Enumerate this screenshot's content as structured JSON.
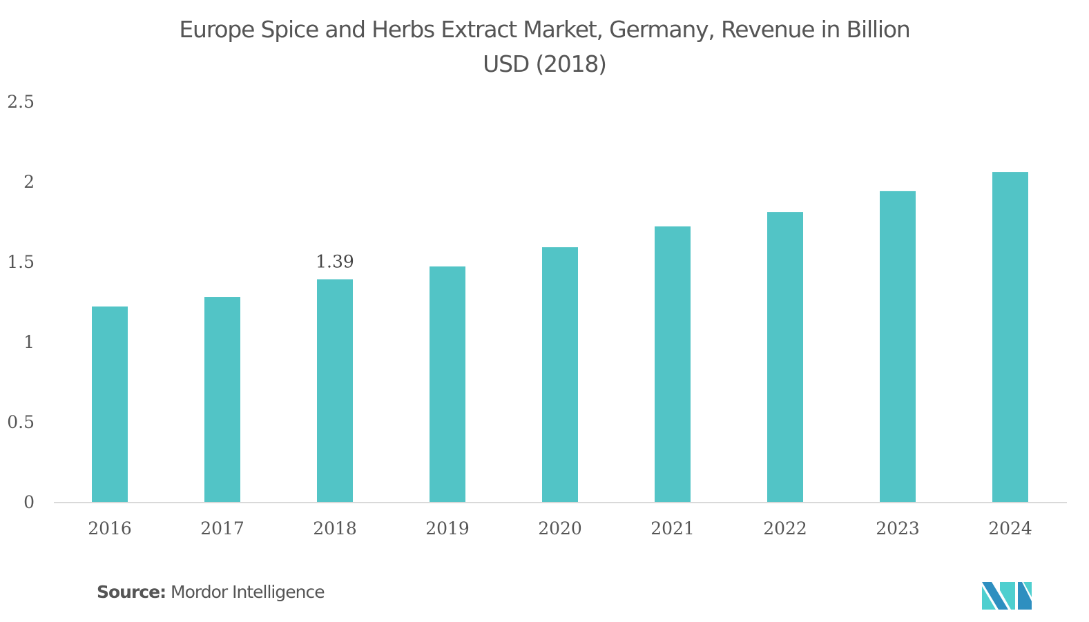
{
  "title_lines": [
    "Europe Spice and Herbs Extract Market, Germany, Revenue in Billion",
    "USD (2018)"
  ],
  "source": {
    "label": "Source:",
    "text": "Mordor Intelligence"
  },
  "logo": {
    "name": "mordor-intelligence-logo",
    "colors": [
      "#2e8fc0",
      "#4ecfcf"
    ]
  },
  "colors": {
    "bar": "#52c4c6",
    "axis": "#d9d9d9",
    "text": "#555555"
  },
  "chart_data": {
    "type": "bar",
    "title": "Europe Spice and Herbs Extract Market, Germany, Revenue in Billion USD (2018)",
    "xlabel": "",
    "ylabel": "",
    "categories": [
      "2016",
      "2017",
      "2018",
      "2019",
      "2020",
      "2021",
      "2022",
      "2023",
      "2024"
    ],
    "values": [
      1.22,
      1.28,
      1.39,
      1.47,
      1.59,
      1.72,
      1.81,
      1.94,
      2.06
    ],
    "data_labels": [
      {
        "category": "2018",
        "text": "1.39"
      }
    ],
    "ylim": [
      0,
      2.5
    ],
    "yticks": [
      "0",
      "0.5",
      "1",
      "1.5",
      "2",
      "2.5"
    ],
    "ytick_values": [
      0,
      0.5,
      1,
      1.5,
      2,
      2.5
    ],
    "grid": false,
    "legend": "none"
  }
}
